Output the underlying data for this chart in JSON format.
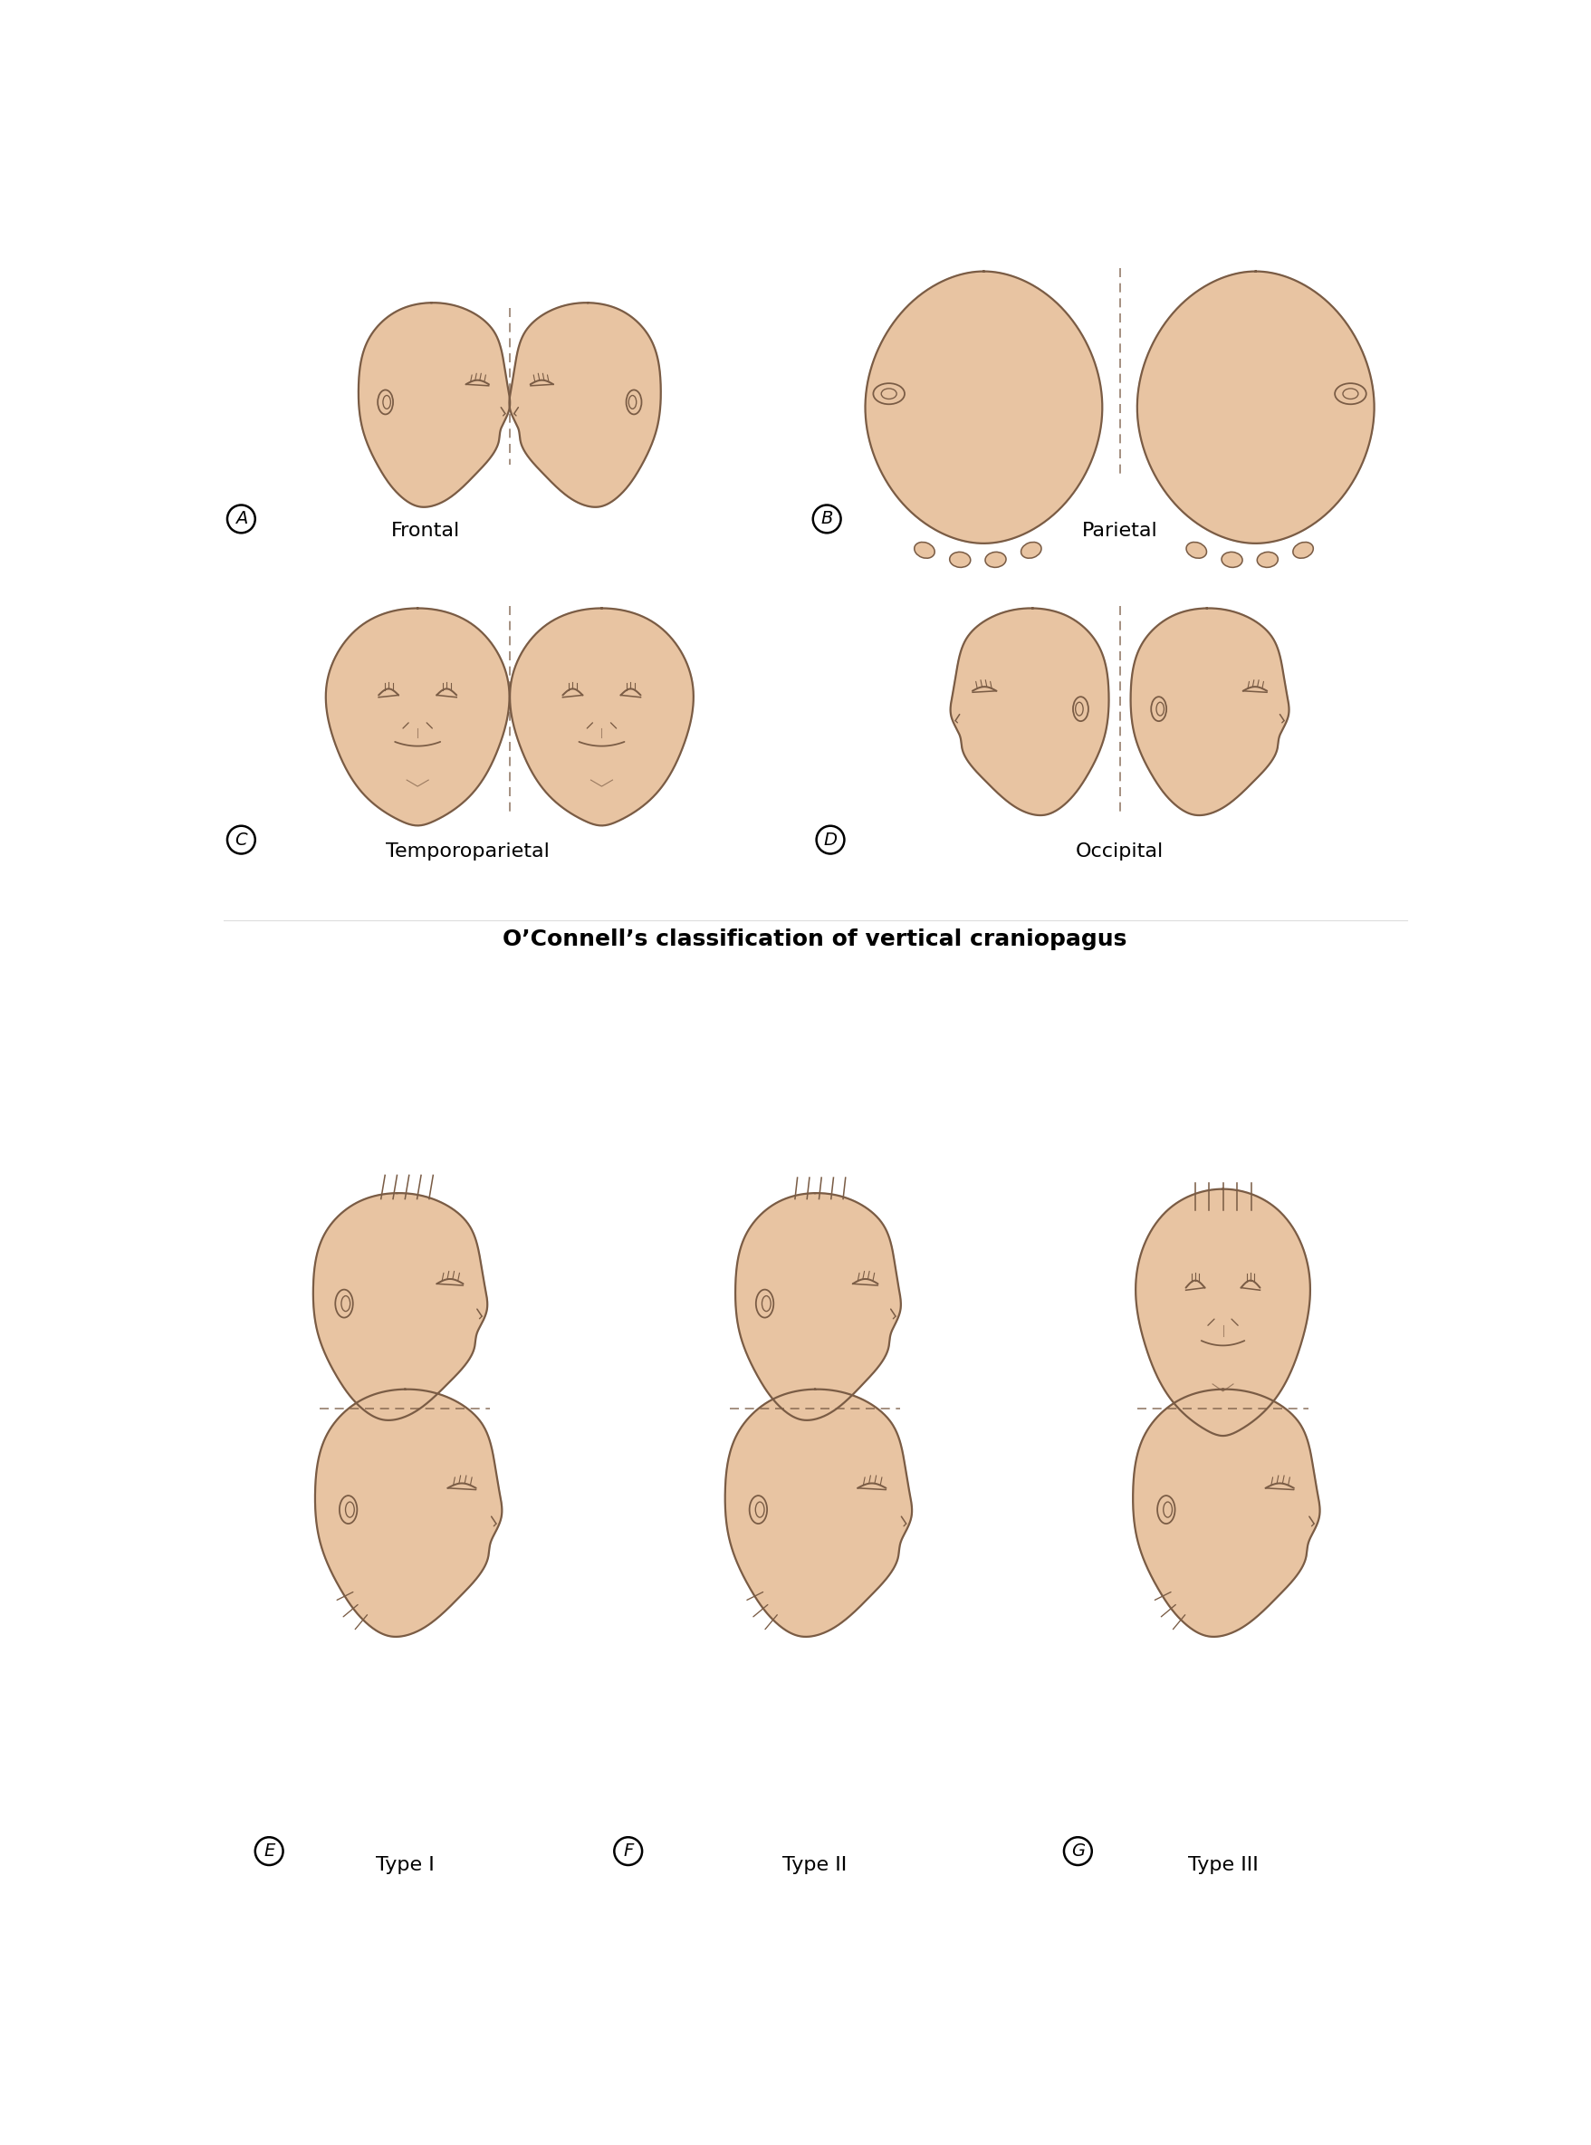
{
  "background_color": "#ffffff",
  "skin_color": "#e8c4a2",
  "outline_color": "#7a5c45",
  "title": "O’Connell’s classification of vertical craniopagus",
  "title_fontsize": 18,
  "title_fontweight": "bold",
  "labels": {
    "A": "Frontal",
    "B": "Parietal",
    "C": "Temporoparietal",
    "D": "Occipital",
    "E": "Type I",
    "F": "Type II",
    "G": "Type III"
  },
  "label_fontsize": 16,
  "circle_label_fontsize": 14,
  "lw": 1.6
}
